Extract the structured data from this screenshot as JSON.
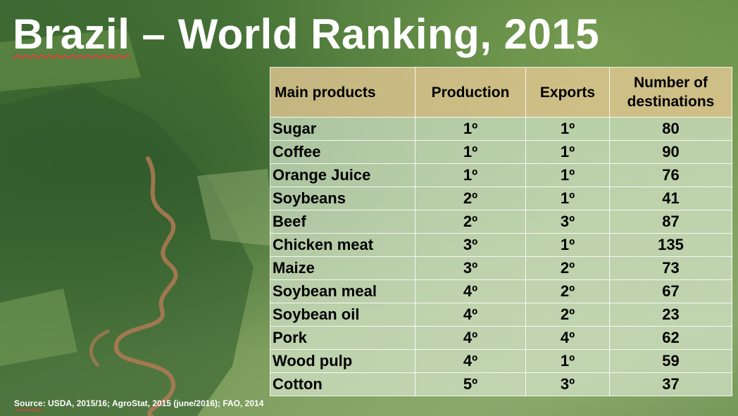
{
  "slide": {
    "title_first_word": "Brazil",
    "title_rest": " – World Ranking, 2015"
  },
  "table": {
    "headers": [
      "Main products",
      "Production",
      "Exports",
      "Number of destinations"
    ],
    "rows": [
      {
        "product": "Sugar",
        "production": "1º",
        "exports": "1º",
        "destinations": "80"
      },
      {
        "product": "Coffee",
        "production": "1º",
        "exports": "1º",
        "destinations": "90"
      },
      {
        "product": "Orange Juice",
        "production": "1º",
        "exports": "1º",
        "destinations": "76"
      },
      {
        "product": "Soybeans",
        "production": "2º",
        "exports": "1º",
        "destinations": "41"
      },
      {
        "product": "Beef",
        "production": "2º",
        "exports": "3º",
        "destinations": "87"
      },
      {
        "product": "Chicken meat",
        "production": "3º",
        "exports": "1º",
        "destinations": "135"
      },
      {
        "product": "Maize",
        "production": "3º",
        "exports": "2º",
        "destinations": "73"
      },
      {
        "product": "Soybean meal",
        "production": "4º",
        "exports": "2º",
        "destinations": "67"
      },
      {
        "product": "Soybean oil",
        "production": "4º",
        "exports": "2º",
        "destinations": "23"
      },
      {
        "product": "Pork",
        "production": "4º",
        "exports": "4º",
        "destinations": "62"
      },
      {
        "product": "Wood pulp",
        "production": "4º",
        "exports": "1º",
        "destinations": "59"
      },
      {
        "product": "Cotton",
        "production": "5º",
        "exports": "3º",
        "destinations": "37"
      }
    ]
  },
  "source": {
    "label": "Source",
    "text": ": USDA, 2015/16; AgroStat, 2015 (june/2016); FAO, 2014"
  },
  "colors": {
    "header_fill": "#e8c996",
    "row_fill": "#d6e4cb",
    "title_text": "#ffffff"
  }
}
